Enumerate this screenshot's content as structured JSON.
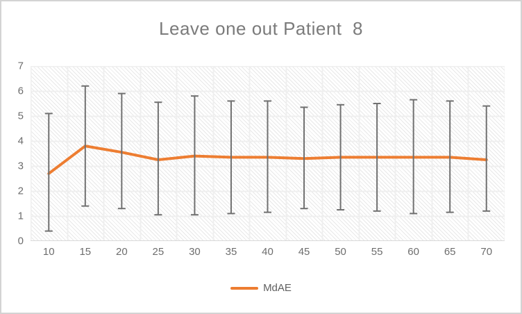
{
  "window": {
    "background_color": "#ffffff",
    "border_color": "#d3d3d3"
  },
  "chart_data": {
    "type": "line",
    "title": "Leave one out Patient  8",
    "title_color": "#7b7b7b",
    "categories": [
      "10",
      "15",
      "20",
      "25",
      "30",
      "35",
      "40",
      "45",
      "50",
      "55",
      "60",
      "65",
      "70"
    ],
    "series": [
      {
        "name": "MdAE",
        "color": "#ED7D31",
        "values": [
          2.7,
          3.8,
          3.55,
          3.25,
          3.4,
          3.35,
          3.35,
          3.3,
          3.35,
          3.35,
          3.35,
          3.35,
          3.25
        ],
        "error_upper": [
          5.1,
          6.2,
          5.9,
          5.55,
          5.8,
          5.6,
          5.6,
          5.35,
          5.45,
          5.5,
          5.65,
          5.6,
          5.4
        ],
        "error_lower": [
          0.4,
          1.4,
          1.3,
          1.05,
          1.05,
          1.1,
          1.15,
          1.3,
          1.25,
          1.2,
          1.1,
          1.15,
          1.2
        ]
      }
    ],
    "xlabel": "",
    "ylabel": "",
    "ylim": [
      0,
      7
    ],
    "yticks": [
      "7",
      "6",
      "5",
      "4",
      "3",
      "2",
      "1",
      "0"
    ],
    "grid": true,
    "gridline_color": "#efefef",
    "axis_line_color": "#d9d9d9",
    "error_bar_color": "#707070",
    "tick_label_color": "#6d6d6d",
    "legend_position": "bottom"
  }
}
